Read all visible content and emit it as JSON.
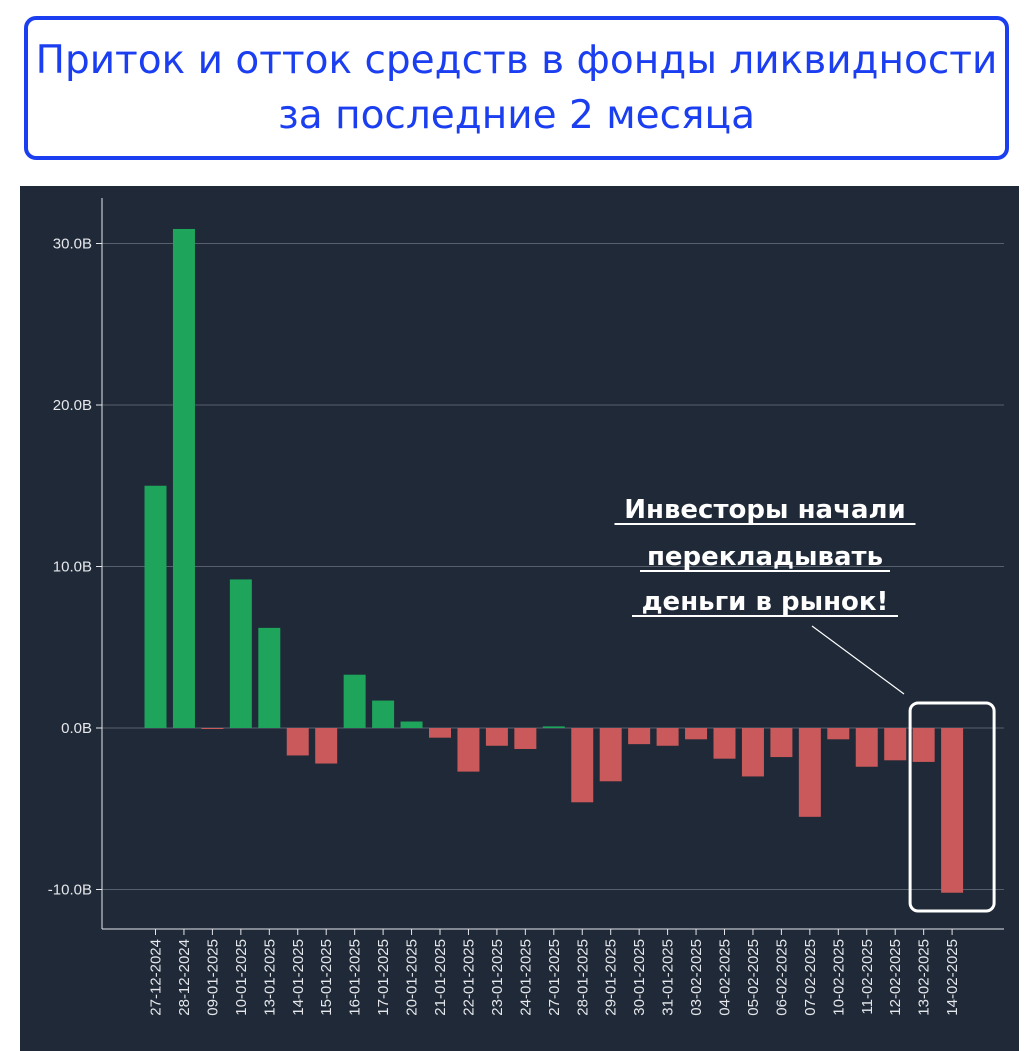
{
  "title": {
    "line1": "Приток и отток средств в фонды ликвидности",
    "line2": "за последние 2 месяца"
  },
  "annotation": {
    "lines": [
      "Инвесторы начали",
      "перекладывать",
      "деньги в рынок!"
    ]
  },
  "colors": {
    "positive": "#1ea45b",
    "negative": "#c9595a",
    "background": "#1f2937",
    "title": "#1b3ff0",
    "highlight_box": "#ffffff"
  },
  "chart_data": {
    "type": "bar",
    "title": "",
    "xlabel": "",
    "ylabel": "",
    "unit": "B",
    "categories": [
      "27-12-2024",
      "28-12-2024",
      "09-01-2025",
      "10-01-2025",
      "13-01-2025",
      "14-01-2025",
      "15-01-2025",
      "16-01-2025",
      "17-01-2025",
      "20-01-2025",
      "21-01-2025",
      "22-01-2025",
      "23-01-2025",
      "24-01-2025",
      "27-01-2025",
      "28-01-2025",
      "29-01-2025",
      "30-01-2025",
      "31-01-2025",
      "03-02-2025",
      "04-02-2025",
      "05-02-2025",
      "06-02-2025",
      "07-02-2025",
      "10-02-2025",
      "11-02-2025",
      "12-02-2025",
      "13-02-2025",
      "14-02-2025"
    ],
    "values": [
      15.0,
      30.9,
      -0.05,
      9.2,
      6.2,
      -1.7,
      -2.2,
      3.3,
      1.7,
      0.4,
      -0.6,
      -2.7,
      -1.1,
      -1.3,
      0.1,
      -4.6,
      -3.3,
      -1.0,
      -1.1,
      -0.7,
      -1.9,
      -3.0,
      -1.8,
      -5.5,
      -0.7,
      -2.4,
      -2.0,
      -2.1,
      -10.2
    ],
    "yticks": [
      -10,
      0,
      10,
      20,
      30
    ],
    "ytick_labels": [
      "-10.0B",
      "0.0B",
      "10.0B",
      "20.0B",
      "30.0B"
    ],
    "ylim": [
      -12.0,
      33.0
    ],
    "grid": true,
    "highlight_category": "14-02-2025"
  }
}
